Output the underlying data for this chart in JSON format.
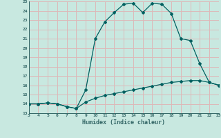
{
  "xlabel": "Humidex (Indice chaleur)",
  "x_min": 3,
  "x_max": 23,
  "y_min": 13,
  "y_max": 25,
  "background_color": "#c8e8e0",
  "grid_color": "#ddb8b8",
  "line_color": "#006060",
  "curve1_x": [
    3,
    4,
    5,
    6,
    7,
    8,
    9,
    10,
    11,
    12,
    13,
    14,
    15,
    16,
    17,
    18,
    19,
    20,
    21,
    22,
    23
  ],
  "curve1_y": [
    14.0,
    14.0,
    14.1,
    14.0,
    13.7,
    13.5,
    15.5,
    21.0,
    22.8,
    23.8,
    24.7,
    24.8,
    23.8,
    24.8,
    24.7,
    23.7,
    21.0,
    20.8,
    18.3,
    16.3,
    16.0
  ],
  "curve2_x": [
    3,
    4,
    5,
    6,
    7,
    8,
    9,
    10,
    11,
    12,
    13,
    14,
    15,
    16,
    17,
    18,
    19,
    20,
    21,
    22,
    23
  ],
  "curve2_y": [
    14.0,
    14.0,
    14.1,
    14.0,
    13.7,
    13.5,
    14.2,
    14.6,
    14.9,
    15.1,
    15.3,
    15.5,
    15.7,
    15.9,
    16.1,
    16.3,
    16.4,
    16.5,
    16.5,
    16.3,
    16.0
  ],
  "xtick_labels": [
    "3",
    "4",
    "5",
    "6",
    "7",
    "8",
    "9",
    "10",
    "11",
    "12",
    "13",
    "14",
    "15",
    "16",
    "17",
    "18",
    "19",
    "20",
    "21",
    "22",
    "23"
  ],
  "ytick_labels": [
    "13",
    "14",
    "15",
    "16",
    "17",
    "18",
    "19",
    "20",
    "21",
    "22",
    "23",
    "24",
    "25"
  ],
  "font_color": "#336666",
  "marker_size": 2.0,
  "linewidth": 0.9
}
